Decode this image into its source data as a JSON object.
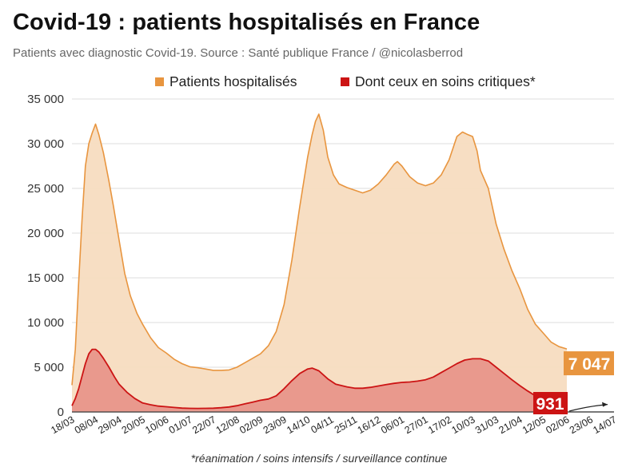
{
  "chart_data": {
    "type": "area",
    "title": "Covid-19 : patients hospitalisés en France",
    "subtitle": "Patients avec diagnostic Covid-19. Source : Santé publique France / @nicolasberrod",
    "footnote": "*réanimation / soins intensifs / surveillance continue",
    "ylim": [
      0,
      35000
    ],
    "y_ticks": [
      0,
      5000,
      10000,
      15000,
      20000,
      25000,
      30000,
      35000
    ],
    "y_tick_labels": [
      "0",
      "5 000",
      "10 000",
      "15 000",
      "20 000",
      "25 000",
      "30 000",
      "35 000"
    ],
    "x_tick_labels": [
      "18/03",
      "08/04",
      "29/04",
      "20/05",
      "10/06",
      "01/07",
      "22/07",
      "12/08",
      "02/09",
      "23/09",
      "14/10",
      "04/11",
      "25/11",
      "16/12",
      "06/01",
      "27/01",
      "17/02",
      "10/03",
      "31/03",
      "21/04",
      "12/05",
      "02/06",
      "23/06",
      "14/07"
    ],
    "x_tick_days": [
      0,
      21,
      42,
      63,
      84,
      105,
      126,
      147,
      168,
      189,
      210,
      231,
      252,
      273,
      294,
      315,
      336,
      357,
      378,
      399,
      420,
      441,
      462,
      483
    ],
    "series": [
      {
        "name": "Patients hospitalisés",
        "color": "#e8953f",
        "fill": "#f7dcc0",
        "points": [
          [
            0,
            3000
          ],
          [
            3,
            7000
          ],
          [
            6,
            14500
          ],
          [
            9,
            21500
          ],
          [
            12,
            27500
          ],
          [
            15,
            30000
          ],
          [
            18,
            31200
          ],
          [
            21,
            32200
          ],
          [
            24,
            31000
          ],
          [
            28,
            29000
          ],
          [
            33,
            25800
          ],
          [
            37,
            23000
          ],
          [
            42,
            19200
          ],
          [
            47,
            15500
          ],
          [
            52,
            13000
          ],
          [
            58,
            11000
          ],
          [
            63,
            9800
          ],
          [
            70,
            8300
          ],
          [
            77,
            7200
          ],
          [
            84,
            6600
          ],
          [
            91,
            5900
          ],
          [
            98,
            5400
          ],
          [
            105,
            5050
          ],
          [
            112,
            4950
          ],
          [
            119,
            4800
          ],
          [
            126,
            4650
          ],
          [
            133,
            4650
          ],
          [
            140,
            4700
          ],
          [
            147,
            5000
          ],
          [
            154,
            5500
          ],
          [
            161,
            6000
          ],
          [
            168,
            6500
          ],
          [
            175,
            7400
          ],
          [
            182,
            9000
          ],
          [
            189,
            12000
          ],
          [
            196,
            17000
          ],
          [
            203,
            23000
          ],
          [
            210,
            28500
          ],
          [
            214,
            31000
          ],
          [
            217,
            32500
          ],
          [
            220,
            33300
          ],
          [
            224,
            31500
          ],
          [
            228,
            28500
          ],
          [
            233,
            26500
          ],
          [
            238,
            25500
          ],
          [
            245,
            25100
          ],
          [
            252,
            24800
          ],
          [
            259,
            24500
          ],
          [
            266,
            24800
          ],
          [
            273,
            25500
          ],
          [
            280,
            26500
          ],
          [
            287,
            27700
          ],
          [
            290,
            28000
          ],
          [
            294,
            27500
          ],
          [
            301,
            26300
          ],
          [
            308,
            25600
          ],
          [
            315,
            25300
          ],
          [
            322,
            25600
          ],
          [
            329,
            26500
          ],
          [
            336,
            28200
          ],
          [
            343,
            30800
          ],
          [
            348,
            31300
          ],
          [
            353,
            31000
          ],
          [
            357,
            30800
          ],
          [
            361,
            29200
          ],
          [
            364,
            27000
          ],
          [
            371,
            25000
          ],
          [
            378,
            21000
          ],
          [
            385,
            18200
          ],
          [
            392,
            15800
          ],
          [
            399,
            13800
          ],
          [
            406,
            11500
          ],
          [
            413,
            9800
          ],
          [
            420,
            8800
          ],
          [
            427,
            7800
          ],
          [
            434,
            7300
          ],
          [
            441,
            7047
          ]
        ],
        "last_value_label": "7 047"
      },
      {
        "name": "Dont ceux en soins critiques*",
        "color": "#cc1414",
        "fill": "#e8958a",
        "points": [
          [
            0,
            700
          ],
          [
            3,
            1500
          ],
          [
            6,
            2600
          ],
          [
            9,
            4000
          ],
          [
            12,
            5400
          ],
          [
            15,
            6500
          ],
          [
            18,
            7000
          ],
          [
            21,
            7000
          ],
          [
            24,
            6700
          ],
          [
            28,
            6000
          ],
          [
            33,
            5000
          ],
          [
            38,
            3900
          ],
          [
            42,
            3100
          ],
          [
            49,
            2200
          ],
          [
            56,
            1500
          ],
          [
            63,
            1000
          ],
          [
            70,
            800
          ],
          [
            77,
            650
          ],
          [
            84,
            580
          ],
          [
            91,
            500
          ],
          [
            98,
            430
          ],
          [
            105,
            400
          ],
          [
            112,
            390
          ],
          [
            119,
            400
          ],
          [
            126,
            420
          ],
          [
            133,
            470
          ],
          [
            140,
            550
          ],
          [
            147,
            700
          ],
          [
            154,
            900
          ],
          [
            161,
            1100
          ],
          [
            168,
            1300
          ],
          [
            175,
            1450
          ],
          [
            182,
            1800
          ],
          [
            189,
            2600
          ],
          [
            196,
            3500
          ],
          [
            203,
            4300
          ],
          [
            210,
            4800
          ],
          [
            214,
            4900
          ],
          [
            220,
            4600
          ],
          [
            228,
            3700
          ],
          [
            235,
            3100
          ],
          [
            245,
            2800
          ],
          [
            252,
            2650
          ],
          [
            259,
            2650
          ],
          [
            266,
            2750
          ],
          [
            273,
            2900
          ],
          [
            280,
            3050
          ],
          [
            287,
            3200
          ],
          [
            294,
            3300
          ],
          [
            301,
            3350
          ],
          [
            308,
            3450
          ],
          [
            315,
            3600
          ],
          [
            322,
            3900
          ],
          [
            329,
            4400
          ],
          [
            336,
            4900
          ],
          [
            343,
            5400
          ],
          [
            350,
            5800
          ],
          [
            357,
            5950
          ],
          [
            364,
            5950
          ],
          [
            371,
            5700
          ],
          [
            378,
            5000
          ],
          [
            385,
            4300
          ],
          [
            392,
            3600
          ],
          [
            399,
            2950
          ],
          [
            406,
            2350
          ],
          [
            413,
            1800
          ],
          [
            420,
            1400
          ],
          [
            427,
            1100
          ],
          [
            434,
            950
          ],
          [
            441,
            931
          ]
        ],
        "last_value_label": "931"
      }
    ]
  }
}
